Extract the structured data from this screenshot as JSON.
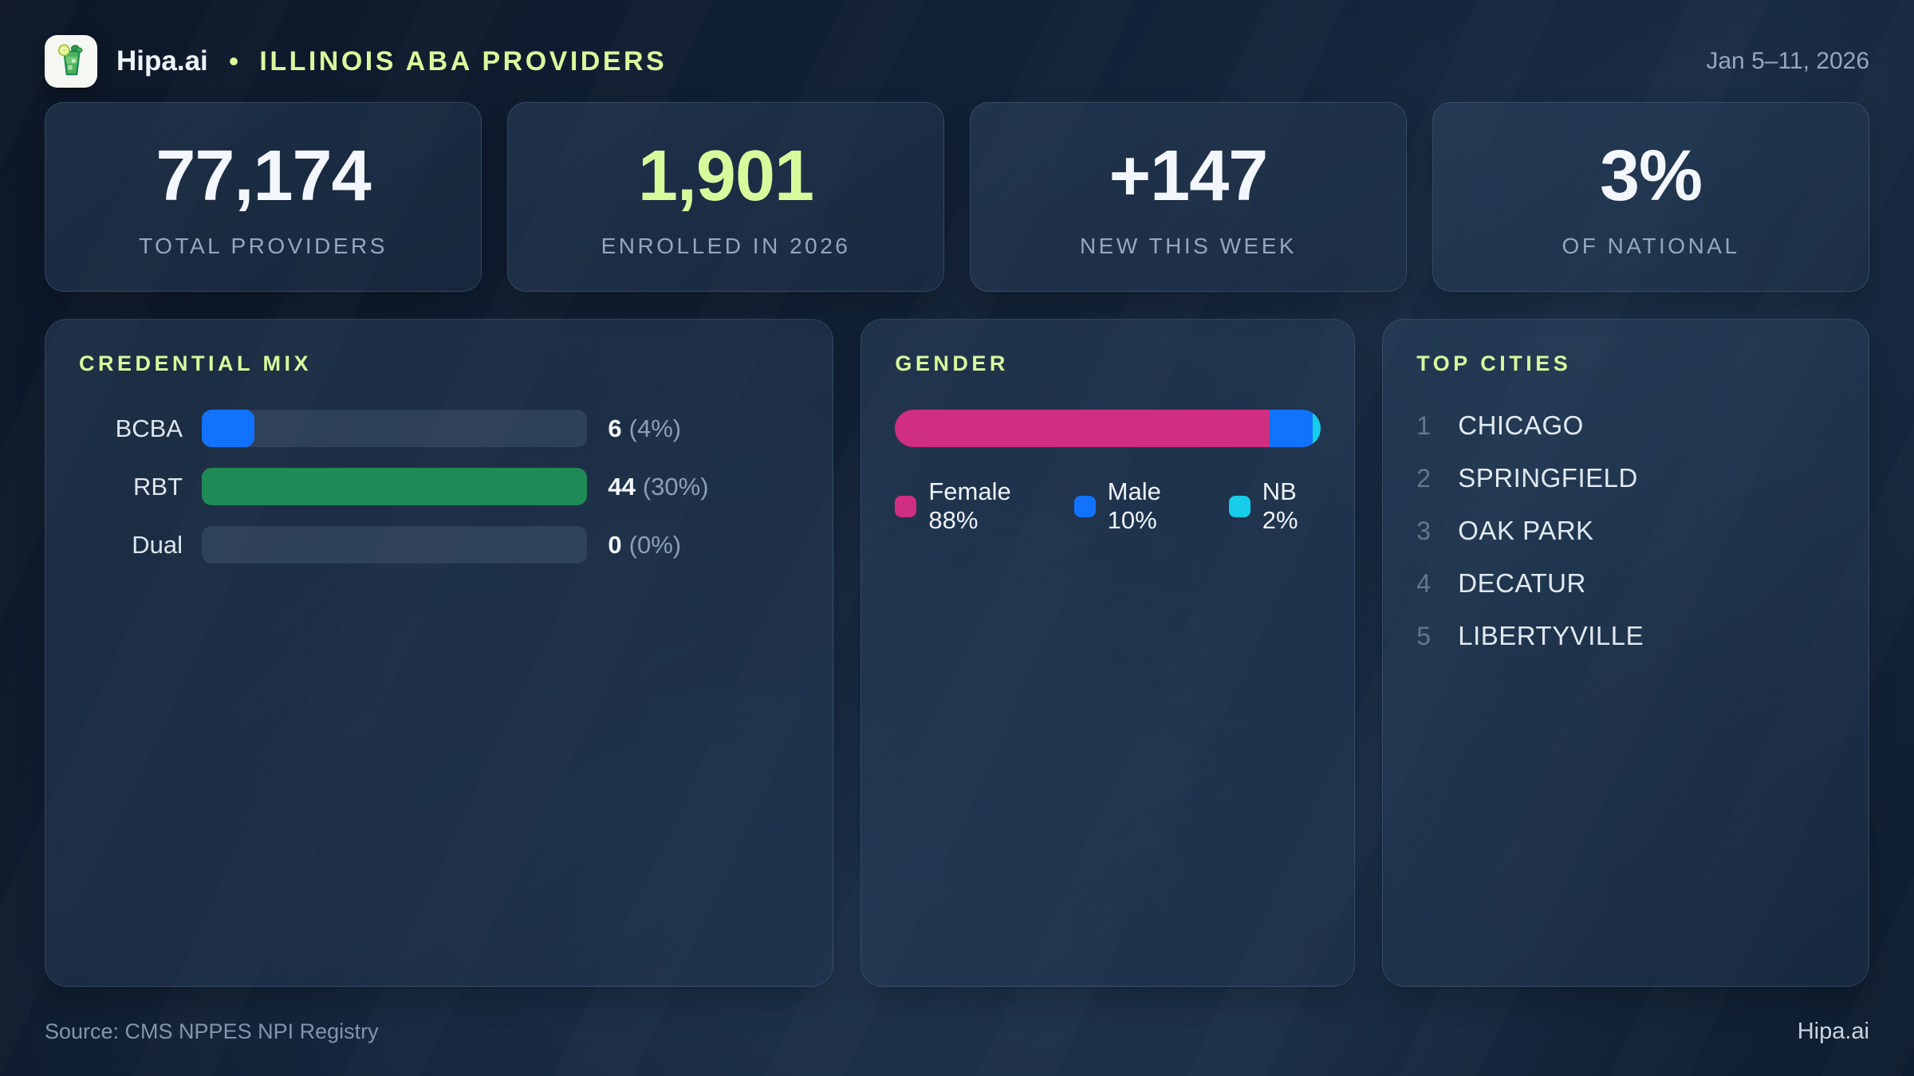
{
  "header": {
    "brand": "Hipa.ai",
    "separator": "•",
    "title": "ILLINOIS ABA PROVIDERS",
    "date_range": "Jan 5–11, 2026",
    "logo_icon": "mojito-glass-icon"
  },
  "stats": [
    {
      "value": "77,174",
      "label": "TOTAL PROVIDERS"
    },
    {
      "value": "1,901",
      "label": "ENROLLED IN 2026"
    },
    {
      "value": "+147",
      "label": "NEW THIS WEEK"
    },
    {
      "value": "3%",
      "label": "OF NATIONAL"
    }
  ],
  "panels": {
    "credential_mix": {
      "title": "CREDENTIAL MIX",
      "rows": [
        {
          "label": "BCBA",
          "count": "6",
          "pct": "(4%)",
          "fill_pct": 13.6,
          "color": "#1173fb"
        },
        {
          "label": "RBT",
          "count": "44",
          "pct": "(30%)",
          "fill_pct": 100,
          "color": "#1e8a55"
        },
        {
          "label": "Dual",
          "count": "0",
          "pct": "(0%)",
          "fill_pct": 0,
          "color": "#1173fb"
        }
      ]
    },
    "gender": {
      "title": "GENDER",
      "segments": [
        {
          "name": "Female",
          "pct": 88,
          "color": "#d02e80",
          "legend": "Female 88%"
        },
        {
          "name": "Male",
          "pct": 10,
          "color": "#1173fb",
          "legend": "Male 10%"
        },
        {
          "name": "NB",
          "pct": 2,
          "color": "#16cdea",
          "legend": "NB 2%"
        }
      ]
    },
    "top_cities": {
      "title": "TOP CITIES",
      "items": [
        {
          "rank": "1",
          "city": "CHICAGO"
        },
        {
          "rank": "2",
          "city": "SPRINGFIELD"
        },
        {
          "rank": "3",
          "city": "OAK PARK"
        },
        {
          "rank": "4",
          "city": "DECATUR"
        },
        {
          "rank": "5",
          "city": "LIBERTYVILLE"
        }
      ]
    }
  },
  "footer": {
    "source": "Source: CMS NPPES NPI Registry",
    "brand": "Hipa.ai"
  },
  "colors": {
    "accent_green_text": "#d9f99d",
    "blue": "#1173fb",
    "emerald": "#1e8a55",
    "pink": "#d02e80",
    "cyan": "#16cdea",
    "muted_label": "#93a8bd",
    "track": "rgba(150,174,200,0.15)"
  },
  "chart_data": [
    {
      "type": "bar",
      "title": "CREDENTIAL MIX",
      "categories": [
        "BCBA",
        "RBT",
        "Dual"
      ],
      "values": [
        6,
        44,
        0
      ],
      "value_labels": [
        "6 (4%)",
        "44 (30%)",
        "0 (0%)"
      ],
      "xlabel": "",
      "ylabel": "",
      "orientation": "horizontal",
      "bar_colors": [
        "#1173fb",
        "#1e8a55",
        "none"
      ]
    },
    {
      "type": "bar",
      "title": "GENDER",
      "subtype": "stacked-100pct",
      "categories": [
        "Female",
        "Male",
        "NB"
      ],
      "values": [
        88,
        10,
        2
      ],
      "legend_entries": [
        "Female 88%",
        "Male 10%",
        "NB 2%"
      ],
      "bar_colors": [
        "#d02e80",
        "#1173fb",
        "#16cdea"
      ],
      "legend_position": "bottom"
    },
    {
      "type": "table",
      "title": "TOP CITIES",
      "categories": [
        "1",
        "2",
        "3",
        "4",
        "5"
      ],
      "values": [
        "CHICAGO",
        "SPRINGFIELD",
        "OAK PARK",
        "DECATUR",
        "LIBERTYVILLE"
      ]
    }
  ]
}
